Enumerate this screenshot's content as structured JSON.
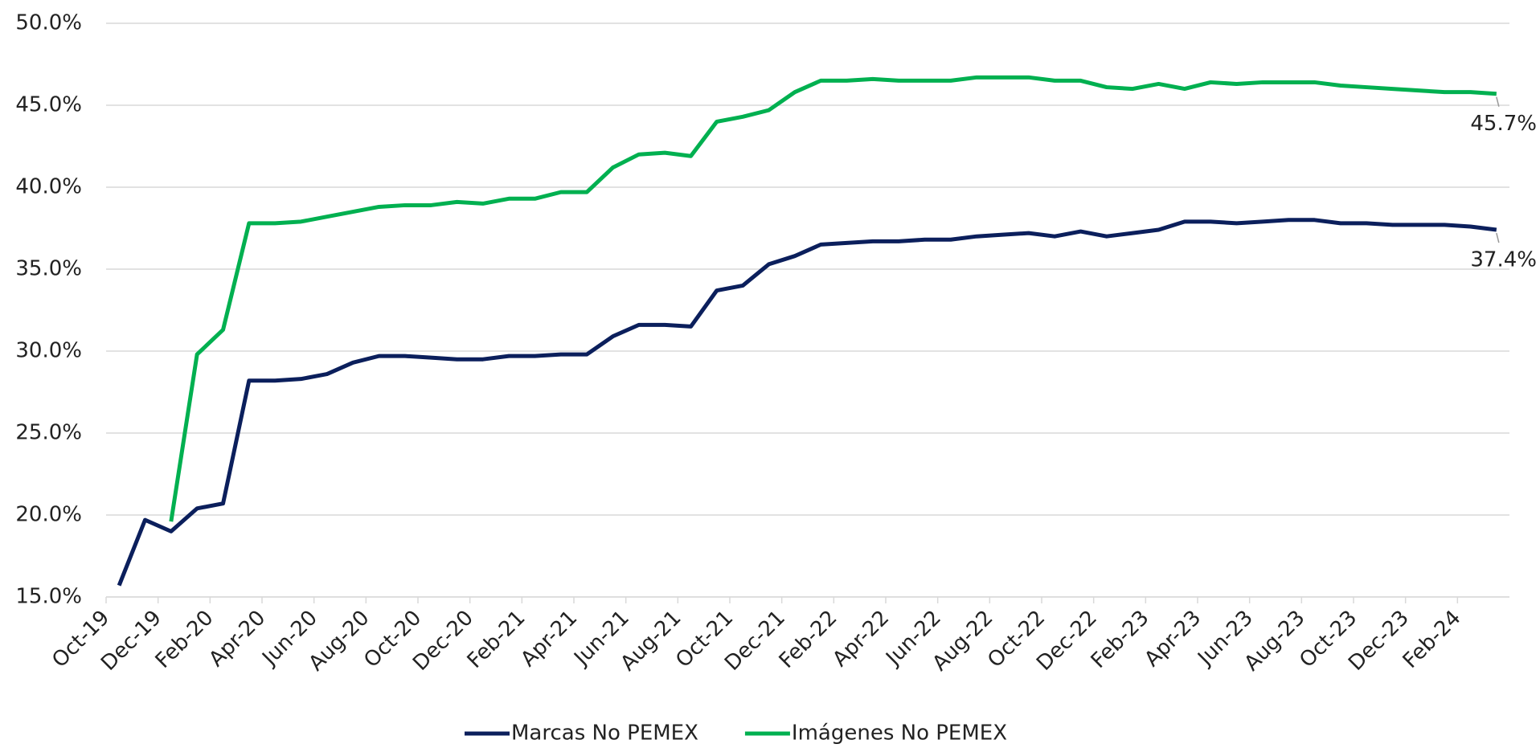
{
  "chart_data": {
    "type": "line",
    "categories": [
      "Oct-19",
      null,
      "Dec-19",
      null,
      "Feb-20",
      null,
      "Apr-20",
      null,
      "Jun-20",
      null,
      "Aug-20",
      null,
      "Oct-20",
      null,
      "Dec-20",
      null,
      "Feb-21",
      null,
      "Apr-21",
      null,
      "Jun-21",
      null,
      "Aug-21",
      null,
      "Oct-21",
      null,
      "Dec-21",
      null,
      "Feb-22",
      null,
      "Apr-22",
      null,
      "Jun-22",
      null,
      "Aug-22",
      null,
      "Oct-22",
      null,
      "Dec-22",
      null,
      "Feb-23",
      null,
      "Apr-23",
      null,
      "Jun-23",
      null,
      "Aug-23",
      null,
      "Oct-23",
      null,
      "Dec-23",
      null,
      "Feb-24",
      null
    ],
    "series": [
      {
        "name": "Marcas No PEMEX",
        "color": "#0b1f5c",
        "values": [
          15.7,
          19.7,
          19.0,
          20.4,
          20.7,
          28.2,
          28.2,
          28.3,
          28.6,
          29.3,
          29.7,
          29.7,
          29.6,
          29.5,
          29.5,
          29.7,
          29.7,
          29.8,
          29.8,
          30.9,
          31.6,
          31.6,
          31.5,
          33.7,
          34.0,
          35.3,
          35.8,
          36.5,
          36.6,
          36.7,
          36.7,
          36.8,
          36.8,
          37.0,
          37.1,
          37.2,
          37.0,
          37.3,
          37.0,
          37.2,
          37.4,
          37.9,
          37.9,
          37.8,
          37.9,
          38.0,
          38.0,
          37.8,
          37.8,
          37.7,
          37.7,
          37.7,
          37.6,
          37.4
        ],
        "value_labels": [
          null,
          null,
          null,
          null,
          null,
          null,
          null,
          null,
          null,
          null,
          null,
          null,
          null,
          null,
          null,
          null,
          null,
          null,
          null,
          null,
          null,
          null,
          null,
          null,
          null,
          null,
          null,
          null,
          null,
          null,
          null,
          null,
          null,
          null,
          null,
          null,
          null,
          null,
          null,
          null,
          null,
          null,
          null,
          null,
          null,
          null,
          null,
          null,
          null,
          null,
          null,
          null,
          null,
          "37.4%"
        ]
      },
      {
        "name": "Imágenes No PEMEX",
        "color": "#00b050",
        "values": [
          null,
          null,
          19.6,
          29.8,
          31.3,
          37.8,
          37.8,
          37.9,
          38.2,
          38.5,
          38.8,
          38.9,
          38.9,
          39.1,
          39.0,
          39.3,
          39.3,
          39.7,
          39.7,
          41.2,
          42.0,
          42.1,
          41.9,
          44.0,
          44.3,
          44.7,
          45.8,
          46.5,
          46.5,
          46.6,
          46.5,
          46.5,
          46.5,
          46.7,
          46.7,
          46.7,
          46.5,
          46.5,
          46.1,
          46.0,
          46.3,
          46.0,
          46.4,
          46.3,
          46.4,
          46.4,
          46.4,
          46.2,
          46.1,
          46.0,
          45.9,
          45.8,
          45.8,
          45.7
        ],
        "value_labels": [
          null,
          null,
          null,
          null,
          null,
          null,
          null,
          null,
          null,
          null,
          null,
          null,
          null,
          null,
          null,
          null,
          null,
          null,
          null,
          null,
          null,
          null,
          null,
          null,
          null,
          null,
          null,
          null,
          null,
          null,
          null,
          null,
          null,
          null,
          null,
          null,
          null,
          null,
          null,
          null,
          null,
          null,
          null,
          null,
          null,
          null,
          null,
          null,
          null,
          null,
          null,
          null,
          null,
          "45.7%"
        ]
      }
    ],
    "ylim": [
      15,
      50
    ],
    "yticks": [
      {
        "value": 15,
        "label": "15.0%"
      },
      {
        "value": 20,
        "label": "20.0%"
      },
      {
        "value": 25,
        "label": "25.0%"
      },
      {
        "value": 30,
        "label": "30.0%"
      },
      {
        "value": 35,
        "label": "35.0%"
      },
      {
        "value": 40,
        "label": "40.0%"
      },
      {
        "value": 45,
        "label": "45.0%"
      },
      {
        "value": 50,
        "label": "50.0%"
      }
    ],
    "grid": true,
    "legend": "bottom"
  }
}
